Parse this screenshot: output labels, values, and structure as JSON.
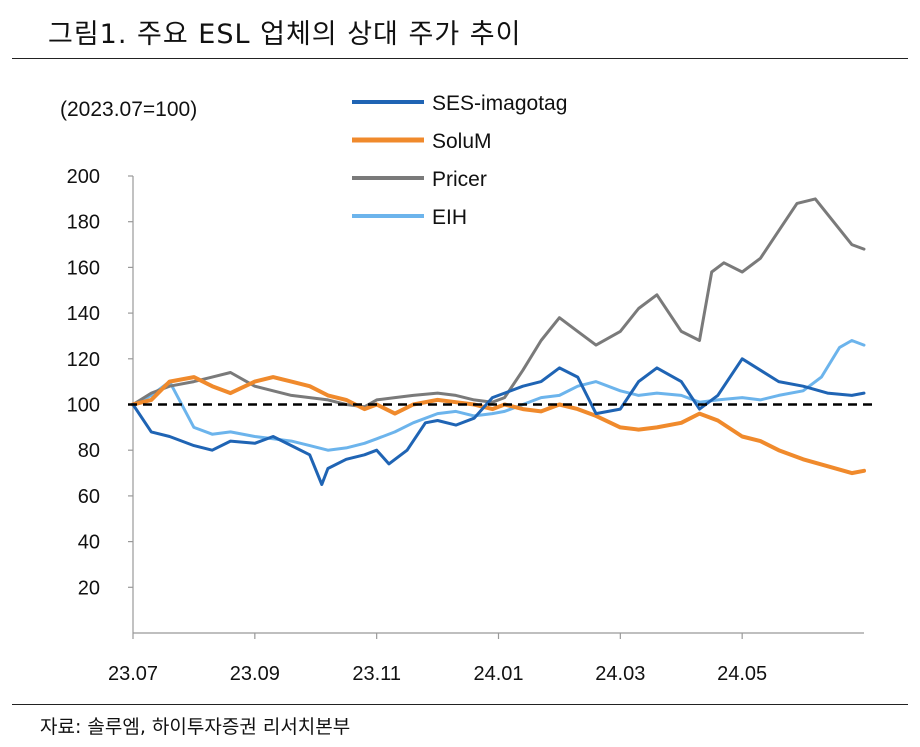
{
  "header": {
    "title": "그림1. 주요 ESL 업체의 상대 주가 추이"
  },
  "footer": {
    "source": "자료: 솔루엠, 하이투자증권 리서치본부"
  },
  "chart_data": {
    "type": "line",
    "title": "그림1. 주요 ESL 업체의 상대 주가 추이",
    "unit_label": "(2023.07=100)",
    "xlabel": "",
    "ylabel": "",
    "ylim": [
      0,
      200
    ],
    "yticks": [
      20,
      40,
      60,
      80,
      100,
      120,
      140,
      160,
      180,
      200
    ],
    "xlim": [
      0,
      12
    ],
    "xticks": [
      0,
      2,
      4,
      6,
      8,
      10
    ],
    "xtick_labels": [
      "23.07",
      "23.09",
      "23.11",
      "24.01",
      "24.03",
      "24.05"
    ],
    "baseline": 100,
    "legend_position": "top-center",
    "series": [
      {
        "name": "SES-imagotag",
        "color": "#1f64b4",
        "x": [
          0,
          0.3,
          0.6,
          1.0,
          1.3,
          1.6,
          2.0,
          2.3,
          2.6,
          2.9,
          3.1,
          3.2,
          3.5,
          3.8,
          4.0,
          4.2,
          4.5,
          4.8,
          5.0,
          5.3,
          5.6,
          5.9,
          6.1,
          6.4,
          6.7,
          7.0,
          7.3,
          7.6,
          8.0,
          8.3,
          8.6,
          9.0,
          9.3,
          9.6,
          10.0,
          10.3,
          10.6,
          11.0,
          11.4,
          11.8,
          12.0
        ],
        "values": [
          100,
          88,
          86,
          82,
          80,
          84,
          83,
          86,
          82,
          78,
          65,
          72,
          76,
          78,
          80,
          74,
          80,
          92,
          93,
          91,
          94,
          103,
          105,
          108,
          110,
          116,
          112,
          96,
          98,
          110,
          116,
          110,
          98,
          104,
          120,
          115,
          110,
          108,
          105,
          104,
          105
        ]
      },
      {
        "name": "SoluM",
        "color": "#f08a2c",
        "x": [
          0,
          0.3,
          0.6,
          1.0,
          1.3,
          1.6,
          2.0,
          2.3,
          2.6,
          2.9,
          3.2,
          3.5,
          3.8,
          4.0,
          4.3,
          4.6,
          5.0,
          5.3,
          5.6,
          5.9,
          6.1,
          6.4,
          6.7,
          7.0,
          7.3,
          7.6,
          8.0,
          8.3,
          8.6,
          9.0,
          9.3,
          9.6,
          10.0,
          10.3,
          10.6,
          11.0,
          11.4,
          11.8,
          12.0
        ],
        "values": [
          100,
          102,
          110,
          112,
          108,
          105,
          110,
          112,
          110,
          108,
          104,
          102,
          98,
          100,
          96,
          100,
          102,
          101,
          100,
          98,
          100,
          98,
          97,
          100,
          98,
          95,
          90,
          89,
          90,
          92,
          96,
          93,
          86,
          84,
          80,
          76,
          73,
          70,
          71
        ]
      },
      {
        "name": "Pricer",
        "color": "#7a7a7a",
        "x": [
          0,
          0.3,
          0.6,
          1.0,
          1.3,
          1.6,
          2.0,
          2.3,
          2.6,
          2.9,
          3.2,
          3.5,
          3.8,
          4.0,
          4.3,
          4.6,
          5.0,
          5.3,
          5.6,
          5.9,
          6.1,
          6.4,
          6.7,
          7.0,
          7.3,
          7.6,
          8.0,
          8.3,
          8.6,
          9.0,
          9.3,
          9.5,
          9.7,
          10.0,
          10.3,
          10.6,
          10.9,
          11.2,
          11.5,
          11.8,
          12.0
        ],
        "values": [
          100,
          105,
          108,
          110,
          112,
          114,
          108,
          106,
          104,
          103,
          102,
          100,
          99,
          102,
          103,
          104,
          105,
          104,
          102,
          101,
          103,
          115,
          128,
          138,
          132,
          126,
          132,
          142,
          148,
          132,
          128,
          158,
          162,
          158,
          164,
          176,
          188,
          190,
          180,
          170,
          168
        ]
      },
      {
        "name": "EIH",
        "color": "#6cb4ec",
        "x": [
          0,
          0.3,
          0.6,
          1.0,
          1.3,
          1.6,
          2.0,
          2.3,
          2.6,
          2.9,
          3.2,
          3.5,
          3.8,
          4.0,
          4.3,
          4.6,
          5.0,
          5.3,
          5.6,
          5.9,
          6.1,
          6.4,
          6.7,
          7.0,
          7.3,
          7.6,
          8.0,
          8.3,
          8.6,
          9.0,
          9.3,
          9.6,
          10.0,
          10.3,
          10.6,
          11.0,
          11.3,
          11.6,
          11.8,
          12.0
        ],
        "values": [
          100,
          104,
          110,
          90,
          87,
          88,
          86,
          85,
          84,
          82,
          80,
          81,
          83,
          85,
          88,
          92,
          96,
          97,
          95,
          96,
          97,
          100,
          103,
          104,
          108,
          110,
          106,
          104,
          105,
          104,
          101,
          102,
          103,
          102,
          104,
          106,
          112,
          125,
          128,
          126
        ]
      }
    ]
  }
}
